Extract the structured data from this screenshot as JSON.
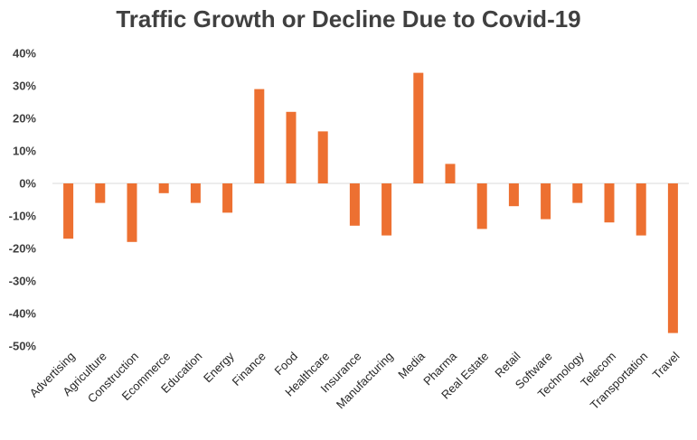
{
  "chart_data": {
    "type": "bar",
    "title": "Traffic Growth or Decline Due to Covid-19",
    "xlabel": "",
    "ylabel": "",
    "ylim": [
      -0.5,
      0.4
    ],
    "yticks": [
      0.4,
      0.3,
      0.2,
      0.1,
      0,
      -0.1,
      -0.2,
      -0.3,
      -0.4,
      -0.5
    ],
    "ytick_labels": [
      "40%",
      "30%",
      "20%",
      "10%",
      "0%",
      "-10%",
      "-20%",
      "-30%",
      "-40%",
      "-50%"
    ],
    "grid": false,
    "bar_color": "#ED7031",
    "categories": [
      "Advertising",
      "Agriculture",
      "Construction",
      "Ecommerce",
      "Education",
      "Energy",
      "Finance",
      "Food",
      "Healthcare",
      "Insurance",
      "Manufacturing",
      "Media",
      "Pharma",
      "Real Estate",
      "Retail",
      "Software",
      "Technology",
      "Telecom",
      "Transportation",
      "Travel"
    ],
    "values": [
      -0.17,
      -0.06,
      -0.18,
      -0.03,
      -0.06,
      -0.09,
      0.29,
      0.22,
      0.16,
      -0.13,
      -0.16,
      0.34,
      0.06,
      -0.14,
      -0.07,
      -0.11,
      -0.06,
      -0.12,
      -0.16,
      -0.46
    ]
  }
}
